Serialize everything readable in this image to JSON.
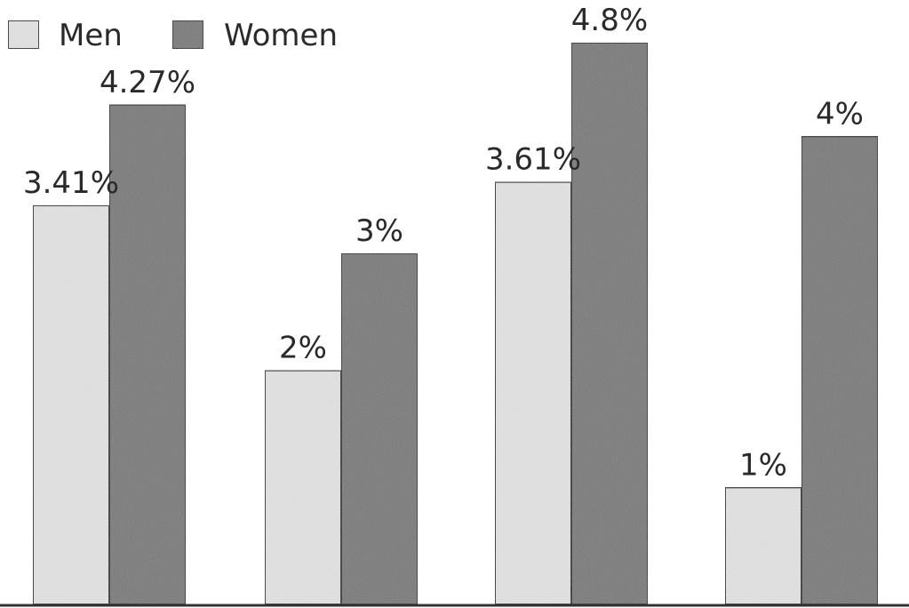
{
  "chart_data": {
    "type": "bar",
    "categories": [
      "",
      "",
      "",
      ""
    ],
    "series": [
      {
        "name": "Men",
        "values": [
          3.41,
          2,
          3.61,
          1
        ],
        "labels": [
          "3.41%",
          "2%",
          "3.61%",
          "1%"
        ]
      },
      {
        "name": "Women",
        "values": [
          4.27,
          3,
          4.8,
          4
        ],
        "labels": [
          "4.27%",
          "3%",
          "4.8%",
          "4%"
        ]
      }
    ],
    "title": "",
    "xlabel": "",
    "ylabel": "",
    "ylim": [
      0,
      4.8
    ],
    "grid": false,
    "legend": "top-left",
    "colors": {
      "Men": "#e2e2e2",
      "Women": "#7a7a7a",
      "outline": "#333333"
    }
  }
}
